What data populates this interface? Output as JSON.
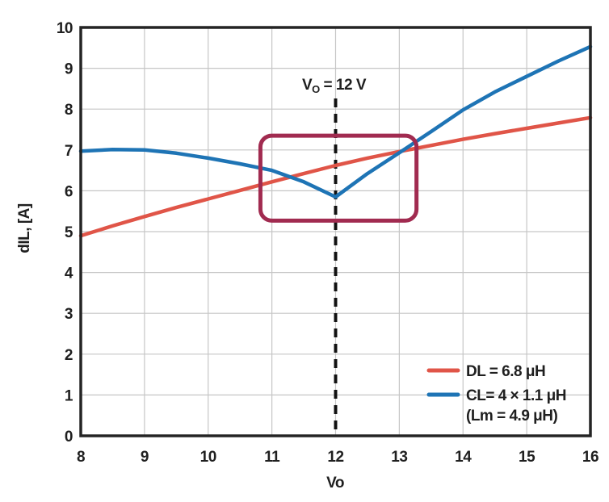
{
  "chart_data": {
    "type": "line",
    "title": "",
    "xlabel": "Vo",
    "ylabel": "dIL, [A]",
    "xlim": [
      8,
      16
    ],
    "ylim": [
      0,
      10
    ],
    "x_ticks": [
      8,
      9,
      10,
      11,
      12,
      13,
      14,
      15,
      16
    ],
    "y_ticks": [
      0,
      1,
      2,
      3,
      4,
      5,
      6,
      7,
      8,
      9,
      10
    ],
    "grid": true,
    "x": [
      8,
      8.5,
      9,
      9.5,
      10,
      10.5,
      11,
      11.5,
      12,
      12.5,
      13,
      13.5,
      14,
      14.5,
      15,
      15.5,
      16
    ],
    "series": [
      {
        "name": "DL = 6.8 μH",
        "color": "#E05548",
        "values": [
          4.9,
          5.14,
          5.37,
          5.59,
          5.8,
          6.01,
          6.22,
          6.42,
          6.62,
          6.8,
          6.96,
          7.11,
          7.26,
          7.4,
          7.53,
          7.66,
          7.79
        ]
      },
      {
        "name": "CL= 4 × 1.1 μH",
        "name_line2": "(Lm = 4.9 μH)",
        "color": "#1E74B5",
        "values": [
          6.97,
          7.01,
          7.0,
          6.92,
          6.8,
          6.66,
          6.5,
          6.22,
          5.85,
          6.42,
          6.93,
          7.45,
          7.98,
          8.42,
          8.8,
          9.18,
          9.53
        ]
      }
    ],
    "legend_position": "lower right",
    "annotation": {
      "text": "VO = 12 V",
      "prefix": "V",
      "subscript": "O",
      "suffix": " = 12 V",
      "x": 12
    },
    "reference_line": {
      "x": 12,
      "style": "dashed",
      "color": "#111111"
    },
    "highlight_box": {
      "x0": 10.82,
      "x1": 13.27,
      "y0": 5.27,
      "y1": 7.35,
      "color": "#A12B50"
    }
  },
  "colors": {
    "background": "#FFFFFF",
    "axis": "#242424",
    "grid": "#C6C6C6",
    "text": "#1F1F1F"
  }
}
